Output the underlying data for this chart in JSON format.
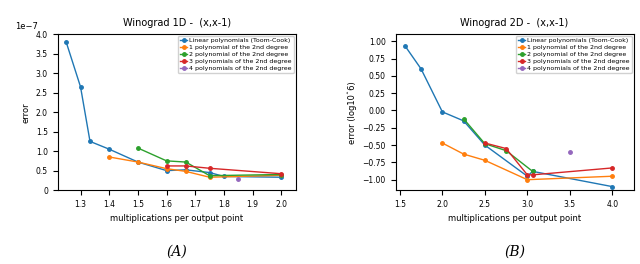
{
  "plot1": {
    "title": "Winograd 1D -  (x,x-1)",
    "xlabel": "multiplications per output point",
    "ylabel": "error",
    "series": [
      {
        "label": "Linear polynomials (Toom-Cook)",
        "color": "#1f77b4",
        "x": [
          1.25,
          1.3,
          1.333,
          1.4,
          1.5,
          1.6,
          1.667,
          1.75,
          1.8,
          2.0
        ],
        "y": [
          3.8e-07,
          2.65e-07,
          1.25e-07,
          1.05e-07,
          7.2e-08,
          5e-08,
          5.2e-08,
          4.5e-08,
          3.5e-08,
          3.3e-08
        ]
      },
      {
        "label": "1 polynomial of the 2nd degree",
        "color": "#ff7f0e",
        "x": [
          1.4,
          1.5,
          1.6,
          1.667,
          1.75,
          2.0
        ],
        "y": [
          8.5e-08,
          7.2e-08,
          5.5e-08,
          4.8e-08,
          3.3e-08,
          3.8e-08
        ]
      },
      {
        "label": "2 polynomial of the 2nd degree",
        "color": "#2ca02c",
        "x": [
          1.5,
          1.6,
          1.667,
          1.75,
          2.0
        ],
        "y": [
          1.08e-07,
          7.5e-08,
          7.2e-08,
          3.7e-08,
          4e-08
        ]
      },
      {
        "label": "3 polynomials of the 2nd degree",
        "color": "#d62728",
        "x": [
          1.6,
          1.667,
          1.75,
          2.0
        ],
        "y": [
          6.2e-08,
          6.2e-08,
          5.6e-08,
          4.2e-08
        ]
      },
      {
        "label": "4 polynomials of the 2nd degree",
        "color": "#9467bd",
        "x": [
          1.85
        ],
        "y": [
          2.8e-08
        ]
      }
    ],
    "xlim": [
      1.22,
      2.05
    ],
    "ylim": [
      0,
      4e-07
    ],
    "xticks": [
      1.3,
      1.4,
      1.5,
      1.6,
      1.7,
      1.8,
      1.9,
      2.0
    ],
    "label": "(A)"
  },
  "plot2": {
    "title": "Winograd 2D -  (x,x-1)",
    "xlabel": "multiplications per output point",
    "ylabel": "error (log10^6)",
    "series": [
      {
        "label": "Linear polynomials (Toom-Cook)",
        "color": "#1f77b4",
        "x": [
          1.5625,
          1.75,
          2.0,
          2.25,
          2.5,
          3.0,
          3.0625,
          4.0
        ],
        "y": [
          0.93,
          0.6,
          -0.02,
          -0.15,
          -0.5,
          -0.95,
          -0.88,
          -1.1
        ]
      },
      {
        "label": "1 polynomial of the 2nd degree",
        "color": "#ff7f0e",
        "x": [
          2.0,
          2.25,
          2.5,
          3.0,
          4.0
        ],
        "y": [
          -0.47,
          -0.63,
          -0.72,
          -1.0,
          -0.95
        ]
      },
      {
        "label": "2 polynomial of the 2nd degree",
        "color": "#2ca02c",
        "x": [
          2.25,
          2.5,
          2.75,
          3.0625
        ],
        "y": [
          -0.12,
          -0.48,
          -0.58,
          -0.88
        ]
      },
      {
        "label": "3 polynomials of the 2nd degree",
        "color": "#d62728",
        "x": [
          2.5,
          2.75,
          3.0,
          3.0625,
          4.0
        ],
        "y": [
          -0.47,
          -0.55,
          -0.93,
          -0.93,
          -0.83
        ]
      },
      {
        "label": "4 polynomials of the 2nd degree",
        "color": "#9467bd",
        "x": [
          3.5
        ],
        "y": [
          -0.6
        ]
      }
    ],
    "xlim": [
      1.45,
      4.25
    ],
    "ylim": [
      -1.15,
      1.1
    ],
    "yticks": [
      -1.0,
      -0.75,
      -0.5,
      -0.25,
      0.0,
      0.25,
      0.5,
      0.75,
      1.0
    ],
    "xticks": [
      1.5,
      2.0,
      2.5,
      3.0,
      3.5,
      4.0
    ],
    "label": "(B)"
  }
}
